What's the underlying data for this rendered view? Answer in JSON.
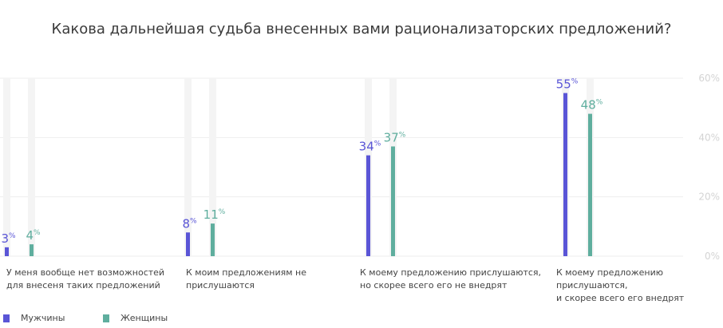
{
  "title": "Какова дальнейшая судьба внесенных вами рационализаторских предложений?",
  "chart_data": {
    "type": "bar",
    "ylim": [
      0,
      60
    ],
    "y_ticks": [
      "0%",
      "20%",
      "40%",
      "60%"
    ],
    "grid": true,
    "legend_position": "bottom-left",
    "categories": [
      [
        "У меня вообще нет возможностей",
        "для внесеня таких предложений"
      ],
      [
        "К моим предложениям не",
        "прислушаются"
      ],
      [
        "К моему предложению прислушаются,",
        "но скорее всего его не внедрят"
      ],
      [
        "К моему предложению прислушаются,",
        "и скорее всего его внедрят"
      ]
    ],
    "series": [
      {
        "name": "Мужчины",
        "color": "#5a55d6",
        "values": [
          3,
          8,
          34,
          55
        ]
      },
      {
        "name": "Женщины",
        "color": "#5fae9e",
        "values": [
          4,
          11,
          37,
          48
        ]
      }
    ],
    "value_suffix": "%"
  }
}
